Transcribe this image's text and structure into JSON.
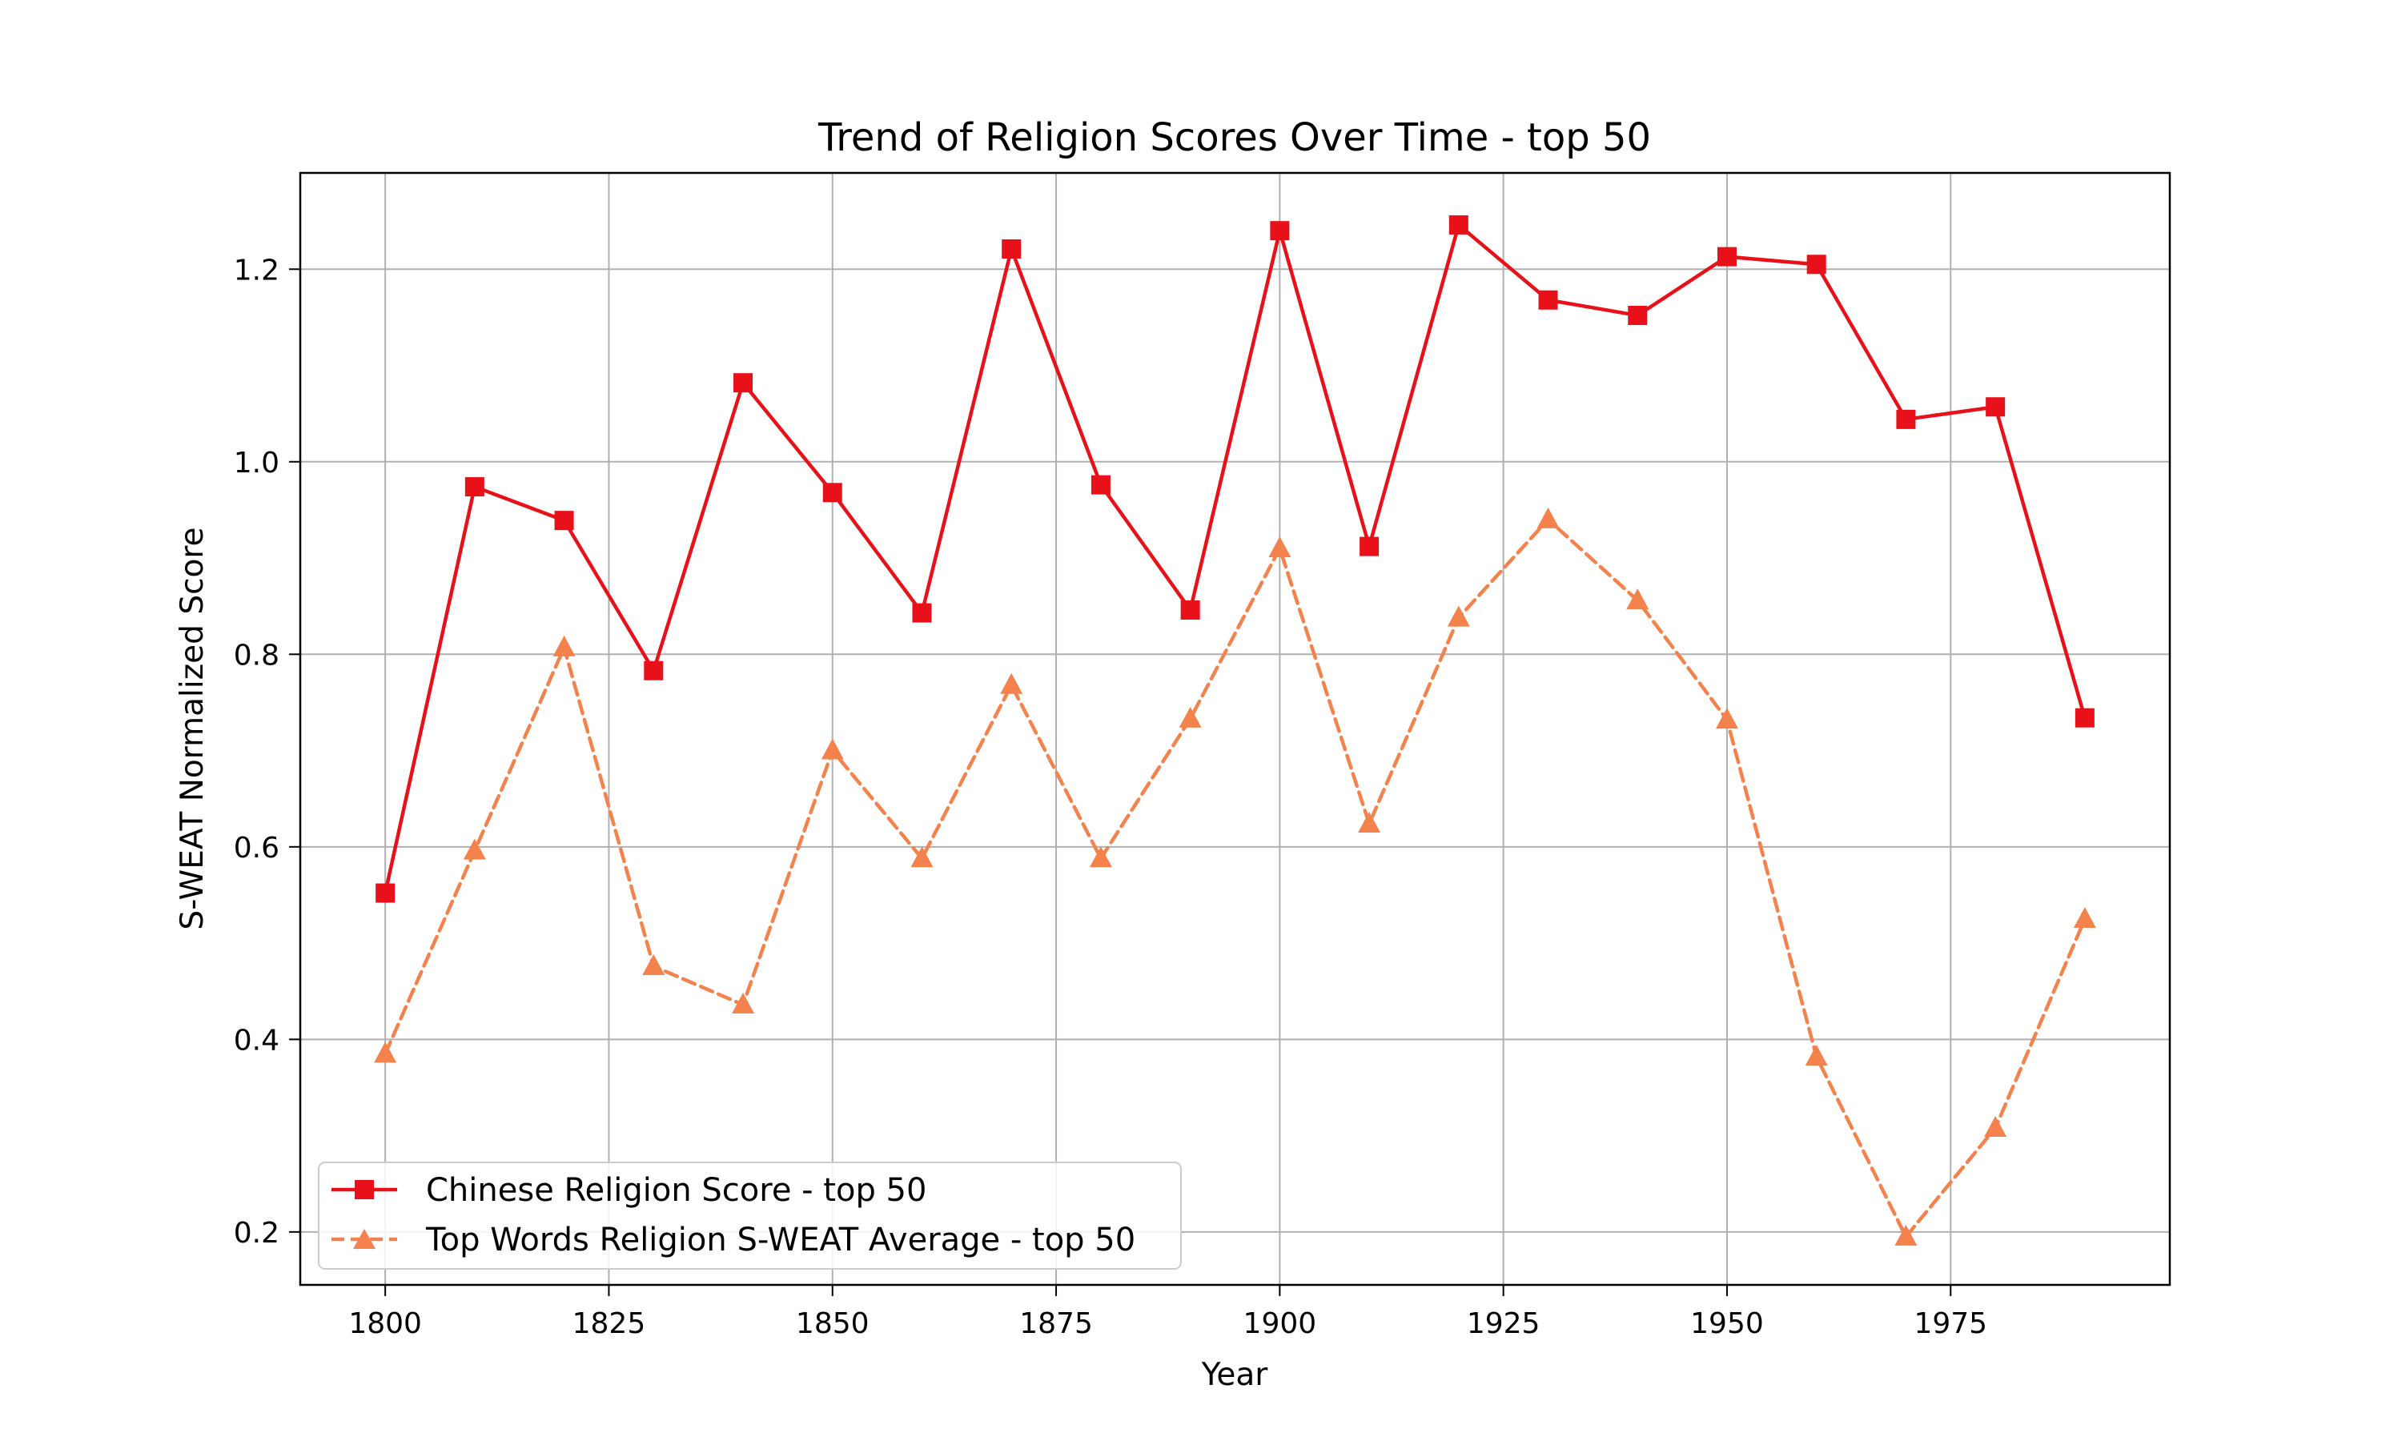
{
  "chart_data": {
    "type": "line",
    "title": "Trend of Religion Scores Over Time - top 50",
    "xlabel": "Year",
    "ylabel": "S-WEAT Normalized Score",
    "x": [
      1800,
      1810,
      1820,
      1830,
      1840,
      1850,
      1860,
      1870,
      1880,
      1890,
      1900,
      1910,
      1920,
      1930,
      1940,
      1950,
      1960,
      1970,
      1980,
      1990
    ],
    "xlim": [
      1790.5,
      1999.5
    ],
    "ylim": [
      0.145,
      1.3
    ],
    "xticks": [
      "1800",
      "1825",
      "1850",
      "1875",
      "1900",
      "1925",
      "1950",
      "1975"
    ],
    "yticks": [
      "0.2",
      "0.4",
      "0.6",
      "0.8",
      "1.0",
      "1.2"
    ],
    "grid": true,
    "legend_position": "lower-left",
    "series": [
      {
        "name": "Chinese Religion Score - top 50",
        "color": "#e8111a",
        "style": "solid",
        "marker": "square",
        "values": [
          0.552,
          0.974,
          0.939,
          0.783,
          1.082,
          0.968,
          0.843,
          1.221,
          0.976,
          0.846,
          1.24,
          0.912,
          1.246,
          1.168,
          1.152,
          1.213,
          1.205,
          1.044,
          1.057,
          0.734
        ]
      },
      {
        "name": "Top Words Religion S-WEAT Average - top 50",
        "color": "#f4824d",
        "style": "dashed",
        "marker": "triangle",
        "values": [
          0.385,
          0.596,
          0.807,
          0.476,
          0.436,
          0.7,
          0.588,
          0.768,
          0.588,
          0.733,
          0.91,
          0.624,
          0.838,
          0.94,
          0.856,
          0.732,
          0.382,
          0.195,
          0.308,
          0.525
        ]
      }
    ]
  }
}
